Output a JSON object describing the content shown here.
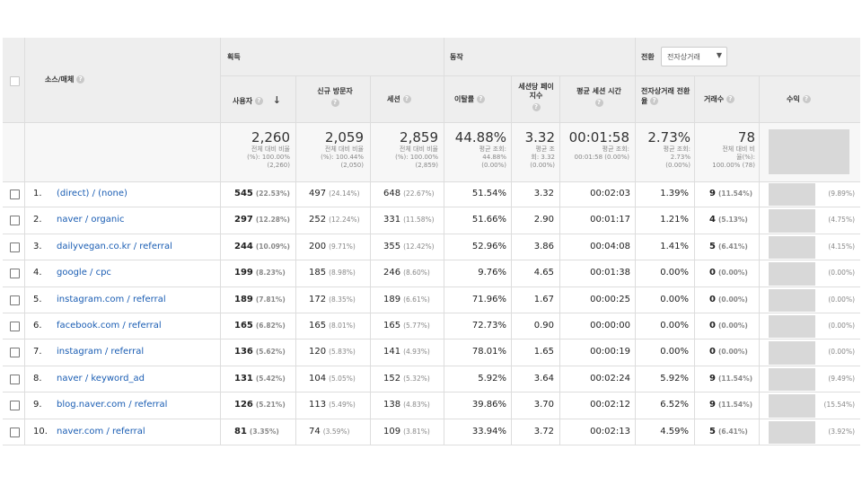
{
  "header": {
    "source_medium": "소스/매체",
    "acquisition": "획득",
    "behavior": "동작",
    "conversion": "전환",
    "conversion_select": "전자상거래"
  },
  "columns": {
    "users": "사용자",
    "new_users": "신규 방문자",
    "sessions": "세션",
    "bounce_rate": "이탈률",
    "pages_per_session": "세션당 페이지수",
    "avg_session_duration": "평균 세션 시간",
    "ecommerce_conversion_rate": "전자상거래 전환율",
    "transactions": "거래수",
    "revenue": "수익"
  },
  "summary": {
    "users": {
      "big": "2,260",
      "l1": "전체 대비 비율",
      "l2": "(%): 100.00%",
      "l3": "(2,260)"
    },
    "new_users": {
      "big": "2,059",
      "l1": "전체 대비 비율",
      "l2": "(%): 100.44%",
      "l3": "(2,050)"
    },
    "sessions": {
      "big": "2,859",
      "l1": "전체 대비 비율",
      "l2": "(%): 100.00%",
      "l3": "(2,859)"
    },
    "bounce_rate": {
      "big": "44.88%",
      "l1": "평균 조회:",
      "l2": "44.88%",
      "l3": "(0.00%)"
    },
    "pages_per_session": {
      "big": "3.32",
      "l1": "평균 조",
      "l2": "회: 3.32",
      "l3": "(0.00%)"
    },
    "avg_session_duration": {
      "big": "00:01:58",
      "l1": "평균 조회:",
      "l2": "00:01:58 (0.00%)",
      "l3": ""
    },
    "ecommerce_conversion_rate": {
      "big": "2.73%",
      "l1": "평균 조회:",
      "l2": "2.73%",
      "l3": "(0.00%)"
    },
    "transactions": {
      "big": "78",
      "l1": "전체 대비 비",
      "l2": "율(%):",
      "l3": "100.00% (78)"
    }
  },
  "rows": [
    {
      "n": "1.",
      "src": "(direct) / (none)",
      "u": "545",
      "up": "(22.53%)",
      "nu": "497",
      "nup": "(24.14%)",
      "s": "648",
      "sp": "(22.67%)",
      "br": "51.54%",
      "pps": "3.32",
      "asd": "00:02:03",
      "cr": "1.39%",
      "t": "9",
      "tp": "(11.54%)",
      "rp": "(9.89%)"
    },
    {
      "n": "2.",
      "src": "naver / organic",
      "u": "297",
      "up": "(12.28%)",
      "nu": "252",
      "nup": "(12.24%)",
      "s": "331",
      "sp": "(11.58%)",
      "br": "51.66%",
      "pps": "2.90",
      "asd": "00:01:17",
      "cr": "1.21%",
      "t": "4",
      "tp": "(5.13%)",
      "rp": "(4.75%)"
    },
    {
      "n": "3.",
      "src": "dailyvegan.co.kr / referral",
      "u": "244",
      "up": "(10.09%)",
      "nu": "200",
      "nup": "(9.71%)",
      "s": "355",
      "sp": "(12.42%)",
      "br": "52.96%",
      "pps": "3.86",
      "asd": "00:04:08",
      "cr": "1.41%",
      "t": "5",
      "tp": "(6.41%)",
      "rp": "(4.15%)"
    },
    {
      "n": "4.",
      "src": "google / cpc",
      "u": "199",
      "up": "(8.23%)",
      "nu": "185",
      "nup": "(8.98%)",
      "s": "246",
      "sp": "(8.60%)",
      "br": "9.76%",
      "pps": "4.65",
      "asd": "00:01:38",
      "cr": "0.00%",
      "t": "0",
      "tp": "(0.00%)",
      "rp": "(0.00%)"
    },
    {
      "n": "5.",
      "src": "instagram.com / referral",
      "u": "189",
      "up": "(7.81%)",
      "nu": "172",
      "nup": "(8.35%)",
      "s": "189",
      "sp": "(6.61%)",
      "br": "71.96%",
      "pps": "1.67",
      "asd": "00:00:25",
      "cr": "0.00%",
      "t": "0",
      "tp": "(0.00%)",
      "rp": "(0.00%)"
    },
    {
      "n": "6.",
      "src": "facebook.com / referral",
      "u": "165",
      "up": "(6.82%)",
      "nu": "165",
      "nup": "(8.01%)",
      "s": "165",
      "sp": "(5.77%)",
      "br": "72.73%",
      "pps": "0.90",
      "asd": "00:00:00",
      "cr": "0.00%",
      "t": "0",
      "tp": "(0.00%)",
      "rp": "(0.00%)"
    },
    {
      "n": "7.",
      "src": "instagram / referral",
      "u": "136",
      "up": "(5.62%)",
      "nu": "120",
      "nup": "(5.83%)",
      "s": "141",
      "sp": "(4.93%)",
      "br": "78.01%",
      "pps": "1.65",
      "asd": "00:00:19",
      "cr": "0.00%",
      "t": "0",
      "tp": "(0.00%)",
      "rp": "(0.00%)"
    },
    {
      "n": "8.",
      "src": "naver / keyword_ad",
      "u": "131",
      "up": "(5.42%)",
      "nu": "104",
      "nup": "(5.05%)",
      "s": "152",
      "sp": "(5.32%)",
      "br": "5.92%",
      "pps": "3.64",
      "asd": "00:02:24",
      "cr": "5.92%",
      "t": "9",
      "tp": "(11.54%)",
      "rp": "(9.49%)"
    },
    {
      "n": "9.",
      "src": "blog.naver.com / referral",
      "u": "126",
      "up": "(5.21%)",
      "nu": "113",
      "nup": "(5.49%)",
      "s": "138",
      "sp": "(4.83%)",
      "br": "39.86%",
      "pps": "3.70",
      "asd": "00:02:12",
      "cr": "6.52%",
      "t": "9",
      "tp": "(11.54%)",
      "rp": "(15.54%)"
    },
    {
      "n": "10.",
      "src": "naver.com / referral",
      "u": "81",
      "up": "(3.35%)",
      "nu": "74",
      "nup": "(3.59%)",
      "s": "109",
      "sp": "(3.81%)",
      "br": "33.94%",
      "pps": "3.72",
      "asd": "00:02:13",
      "cr": "4.59%",
      "t": "5",
      "tp": "(6.41%)",
      "rp": "(3.92%)"
    }
  ],
  "icons": {
    "help": "help-icon",
    "sort": "sort-down-arrow-icon",
    "dropdown": "dropdown-caret-icon"
  }
}
